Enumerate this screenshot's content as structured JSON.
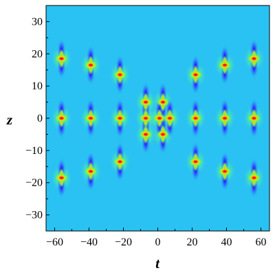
{
  "chart_data": {
    "type": "heatmap",
    "title": "",
    "xlabel": "t",
    "ylabel": "z",
    "xlim": [
      -65,
      65
    ],
    "ylim": [
      -35,
      35
    ],
    "x_ticks": [
      -60,
      -40,
      -20,
      0,
      20,
      40,
      60
    ],
    "y_ticks": [
      30,
      20,
      10,
      0,
      -10,
      -20,
      -30
    ],
    "x_tick_labels": [
      "−60",
      "−40",
      "−20",
      "0",
      "20",
      "40",
      "60"
    ],
    "y_tick_labels": [
      "30",
      "20",
      "10",
      "0",
      "−10",
      "−20",
      "−30"
    ],
    "background_color": "#29c2f2",
    "colormap": [
      "#1a1aff",
      "#29c2f2",
      "#7fff3a",
      "#ffe600",
      "#ff2a00",
      "#e6008c"
    ],
    "grid": false,
    "peaks": [
      {
        "t": -56,
        "z": 18.5
      },
      {
        "t": -39,
        "z": 16.5
      },
      {
        "t": -22,
        "z": 13.5
      },
      {
        "t": 22,
        "z": 13.5
      },
      {
        "t": 39,
        "z": 16.5
      },
      {
        "t": 56,
        "z": 18.5
      },
      {
        "t": -56,
        "z": 0
      },
      {
        "t": -39,
        "z": 0
      },
      {
        "t": -22,
        "z": 0
      },
      {
        "t": 22,
        "z": 0
      },
      {
        "t": 39,
        "z": 0
      },
      {
        "t": 56,
        "z": 0
      },
      {
        "t": -56,
        "z": -18.5
      },
      {
        "t": -39,
        "z": -16.5
      },
      {
        "t": -22,
        "z": -13.5
      },
      {
        "t": 22,
        "z": -13.5
      },
      {
        "t": 39,
        "z": -16.5
      },
      {
        "t": 56,
        "z": -18.5
      },
      {
        "t": -7,
        "z": 5
      },
      {
        "t": -7,
        "z": -5
      },
      {
        "t": 3,
        "z": 5
      },
      {
        "t": 3,
        "z": -5
      },
      {
        "t": -7,
        "z": 0
      },
      {
        "t": 1,
        "z": 0
      },
      {
        "t": 7,
        "z": 0
      }
    ]
  }
}
